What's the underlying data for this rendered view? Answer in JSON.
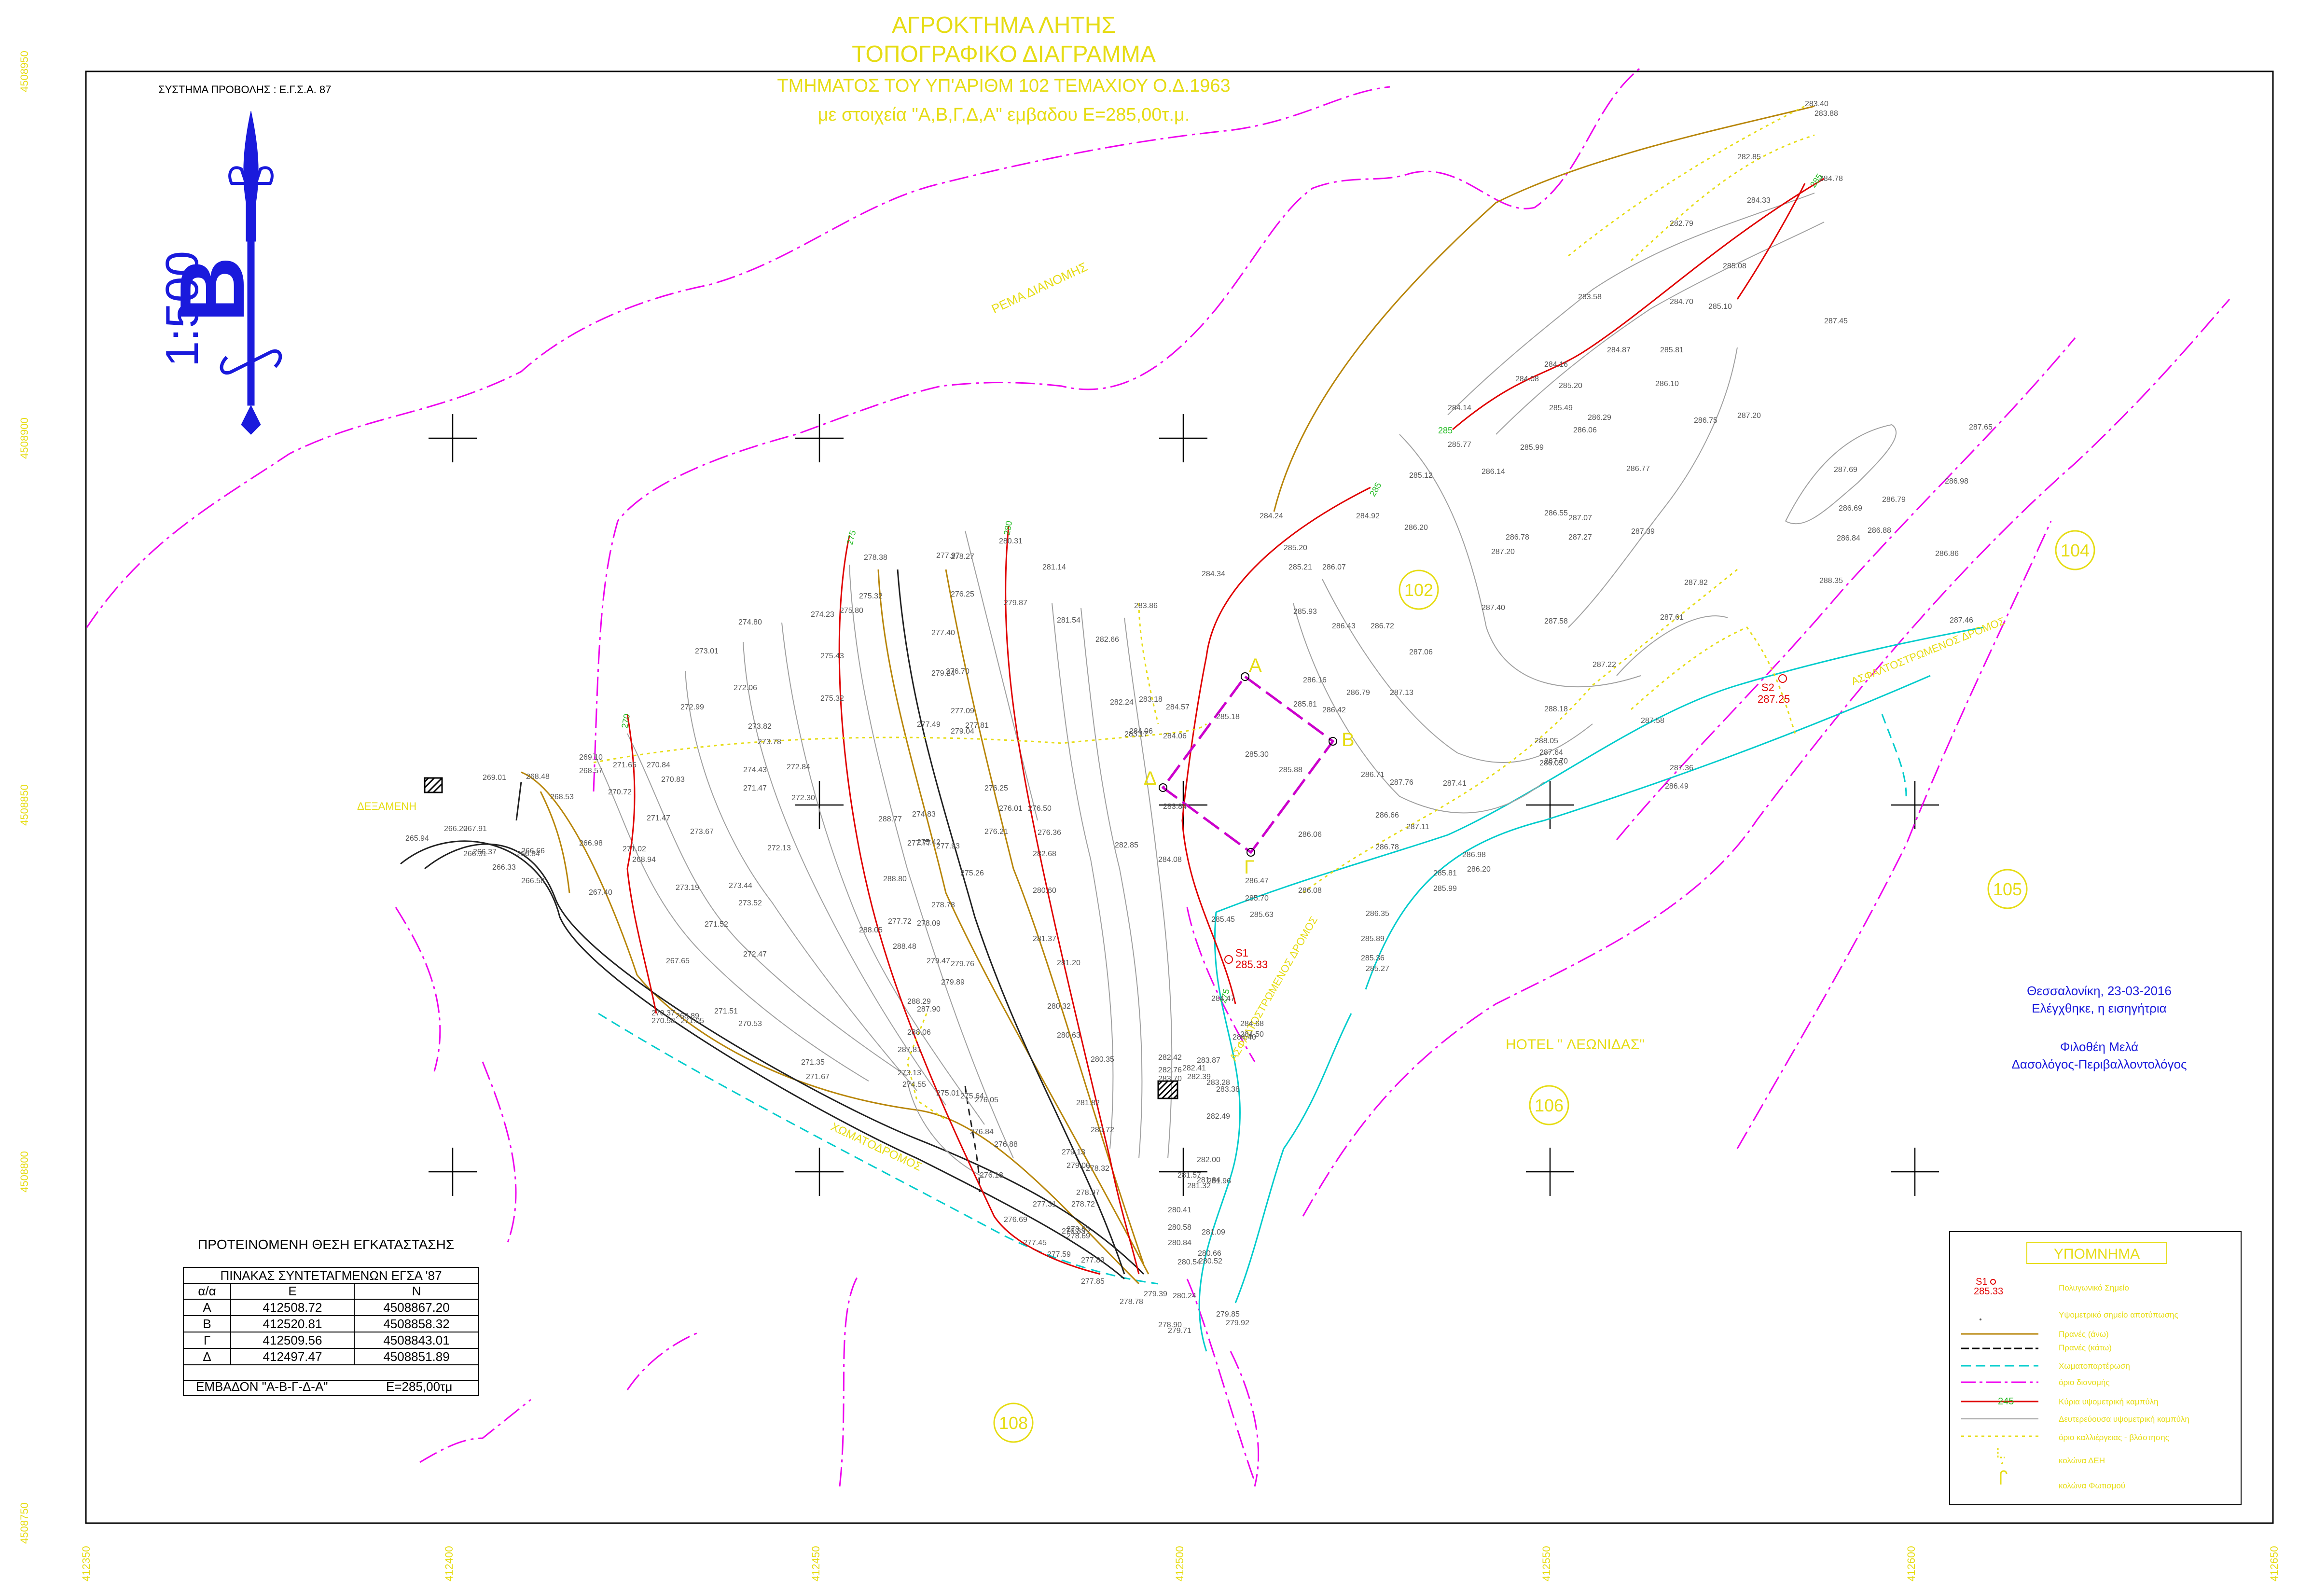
{
  "title": {
    "line1": "ΑΓΡΟΚΤΗΜΑ  ΛΗΤΗΣ",
    "line2": "ΤΟΠΟΓΡΑΦΙΚΟ  ΔΙΑΓΡΑΜΜΑ",
    "line3": "ΤΜΗΜΑΤΟΣ ΤΟΥ ΥΠ'ΑΡΙΘΜ 102 ΤΕΜΑΧΙΟΥ Ο.Δ.1963",
    "line4": "με στοιχεία  \"Α,Β,Γ,Δ,Α\"  εμβαδου Ε=285,00τ.μ."
  },
  "projection_label": "ΣΥΣΤΗΜΑ ΠΡΟΒΟΛΗΣ : Ε.Γ.Σ.Α. 87",
  "scale_label": "1:500",
  "north_arrow_letter": "B",
  "grid": {
    "northing_labels": [
      "4508950",
      "4508900",
      "4508850",
      "4508800",
      "4508750"
    ],
    "easting_labels": [
      "412350",
      "412400",
      "412450",
      "412500",
      "412550",
      "412600",
      "412650"
    ]
  },
  "place_labels": {
    "stream": "ΡΕΜΑ ΔΙΑΝΟΜΗΣ",
    "hotel": "HOTEL \" ΛΕΩΝΙΔΑΣ\"",
    "water_tank": "ΔΕΞΑΜΕΝΗ",
    "road1": "ΑΣΦΑΛΤΟΣΤΡΩΜΕΝΟΣ ΔΡΟΜΟΣ",
    "road2": "ΧΩΜΑΤΟΔΡΟΜΟΣ",
    "road3": "ΑΣΦΑΛΤΟΣΤΡΩΜΕΝΟΣ ΔΡΟΜΟΣ"
  },
  "parcels": [
    "102",
    "104",
    "105",
    "106",
    "108"
  ],
  "vertices": [
    {
      "label": "Α"
    },
    {
      "label": "Β"
    },
    {
      "label": "Γ"
    },
    {
      "label": "Δ"
    }
  ],
  "stations": [
    {
      "name": "S1",
      "elevation": "285.33"
    },
    {
      "name": "S2",
      "elevation": "287.25"
    }
  ],
  "contour_labels": [
    "275",
    "280",
    "285",
    "285",
    "285",
    "275",
    "270"
  ],
  "spot_heights": [
    "283.40",
    "283.88",
    "282.85",
    "284.78",
    "284.33",
    "282.79",
    "285.08",
    "284.70",
    "283.58",
    "285.10",
    "287.45",
    "284.16",
    "284.87",
    "285.81",
    "284.08",
    "285.20",
    "286.10",
    "284.14",
    "285.49",
    "286.29",
    "286.75",
    "287.20",
    "285.77",
    "285.99",
    "286.06",
    "286.77",
    "285.12",
    "286.14",
    "284.24",
    "284.92",
    "286.55",
    "287.07",
    "286.20",
    "285.20",
    "286.78",
    "287.27",
    "287.39",
    "285.21",
    "286.07",
    "287.20",
    "284.34",
    "285.93",
    "287.40",
    "287.58",
    "286.43",
    "286.72",
    "287.06",
    "286.16",
    "286.79",
    "287.13",
    "285.81",
    "286.42",
    "284.57",
    "285.18",
    "287.61",
    "288.05",
    "287.82",
    "287.22",
    "288.18",
    "287.58",
    "284.06",
    "286.71",
    "287.76",
    "287.41",
    "285.30",
    "286.05",
    "287.64",
    "287.70",
    "287.36",
    "286.49",
    "285.88",
    "286.06",
    "286.66",
    "287.11",
    "285.70",
    "286.47",
    "286.08",
    "286.78",
    "286.98",
    "286.20",
    "285.81",
    "285.99",
    "285.63",
    "285.45",
    "286.35",
    "285.89",
    "285.36",
    "285.27",
    "284.47",
    "284.68",
    "284.50",
    "284.40",
    "283.87",
    "283.28",
    "283.38",
    "282.42",
    "282.76",
    "282.41",
    "282.39",
    "283.70",
    "282.49",
    "282.00",
    "281.57",
    "281.32",
    "281.84",
    "281.96",
    "280.41",
    "280.58",
    "280.84",
    "281.09",
    "280.66",
    "280.52",
    "280.54",
    "280.24",
    "279.85",
    "279.92",
    "278.90",
    "279.71",
    "279.39",
    "278.78",
    "281.14",
    "281.54",
    "282.66",
    "283.86",
    "282.24",
    "283.18",
    "284.06",
    "283.17",
    "283.84",
    "284.08",
    "282.85",
    "280.31",
    "279.87",
    "277.97",
    "278.27",
    "276.25",
    "277.40",
    "279.24",
    "276.70",
    "277.09",
    "279.04",
    "277.81",
    "277.49",
    "277.77",
    "277.93",
    "278.78",
    "278.09",
    "279.47",
    "279.76",
    "279.89",
    "277.72",
    "278.38",
    "275.32",
    "275.80",
    "274.23",
    "275.43",
    "275.32",
    "274.80",
    "273.01",
    "272.06",
    "273.82",
    "273.78",
    "274.43",
    "272.84",
    "272.99",
    "271.47",
    "272.30",
    "273.67",
    "272.13",
    "273.19",
    "273.44",
    "273.52",
    "271.52",
    "272.47",
    "270.58",
    "271.51",
    "270.37",
    "271.05",
    "271.65",
    "270.84",
    "270.83",
    "271.47",
    "270.72",
    "271.02",
    "268.94",
    "269.10",
    "268.57",
    "268.53",
    "268.48",
    "269.01",
    "267.91",
    "266.31",
    "266.20",
    "265.94",
    "266.37",
    "266.33",
    "266.58",
    "266.84",
    "266.66",
    "266.98",
    "267.40",
    "267.65",
    "268.89",
    "270.53",
    "271.35",
    "271.67",
    "273.13",
    "274.55",
    "275.01",
    "275.64",
    "276.05",
    "276.84",
    "276.88",
    "276.18",
    "277.31",
    "276.69",
    "276.33",
    "277.45",
    "277.83",
    "277.85",
    "277.59",
    "278.03",
    "278.69",
    "278.72",
    "278.97",
    "279.00",
    "278.32",
    "279.13",
    "280.72",
    "281.82",
    "280.35",
    "280.63",
    "280.32",
    "281.20",
    "281.37",
    "280.60",
    "282.68",
    "276.36",
    "276.50",
    "276.01",
    "276.25",
    "276.21",
    "275.26",
    "275.42",
    "274.83",
    "288.77",
    "288.80",
    "288.48",
    "288.05",
    "288.29",
    "287.90",
    "288.06",
    "287.81",
    "287.65",
    "286.98",
    "287.69",
    "286.79",
    "286.69",
    "286.88",
    "286.84",
    "286.86",
    "288.35",
    "287.46"
  ],
  "signature": {
    "place_date": "Θεσσαλονίκη, 23-03-2016",
    "checked": "Ελέγχθηκε, η εισηγήτρια",
    "name": "Φιλοθέη Μελά",
    "title": "Δασολόγος-Περιβαλλοντολόγος"
  },
  "coord_table": {
    "caption": "ΠΡΟΤΕΙΝΟΜΕΝΗ ΘΕΣΗ ΕΓΚΑΤΑΣΤΑΣΗΣ",
    "header": "ΠΙΝΑΚΑΣ  ΣΥΝΤΕΤΑΓΜΕΝΩΝ  ΕΓΣΑ '87",
    "columns": [
      "α/α",
      "Ε",
      "Ν"
    ],
    "rows": [
      [
        "Α",
        "412508.72",
        "4508867.20"
      ],
      [
        "Β",
        "412520.81",
        "4508858.32"
      ],
      [
        "Γ",
        "412509.56",
        "4508843.01"
      ],
      [
        "Δ",
        "412497.47",
        "4508851.89"
      ]
    ],
    "area_label": "ΕΜΒΑΔΟΝ \"Α-Β-Γ-Δ-Α\"",
    "area_value": "Ε=285,00τμ"
  },
  "legend": {
    "title": "ΥΠΟΜΝΗΜΑ",
    "sample_station": "S1",
    "sample_elevation": "285.33",
    "sample_contour": "245",
    "items": [
      {
        "label": "Πολυγωνικό Σημείο"
      },
      {
        "label": "Υψομετρικό σημείο αποτύπωσης"
      },
      {
        "label": "Πρανές (άνω)"
      },
      {
        "label": "Πρανές (κάτω)"
      },
      {
        "label": "Χωματοπαρτέρωση"
      },
      {
        "label": "όριο διανομής"
      },
      {
        "label": "Κύρια υψομετρική καμπύλη"
      },
      {
        "label": "Δευτερεύουσα υψομετρική καμπύλη"
      },
      {
        "label": "όριο καλλιέργειας - βλάστησης"
      },
      {
        "label": "κολώνα ΔΕΗ"
      },
      {
        "label": "κολώνα Φωτισμού"
      }
    ],
    "colors": {
      "slope_top": "#b8860b",
      "slope_bottom": "#000000",
      "embankment": "#00cccc",
      "boundary": "#ee00ee",
      "main_contour": "#e00000",
      "minor_contour": "#999999",
      "vegetation": "#e6dc14"
    }
  },
  "colors": {
    "title": "#e6dc14",
    "boundary": "#ee00ee",
    "signature": "#1a1adc",
    "scale_mark": "#1a1adc"
  }
}
